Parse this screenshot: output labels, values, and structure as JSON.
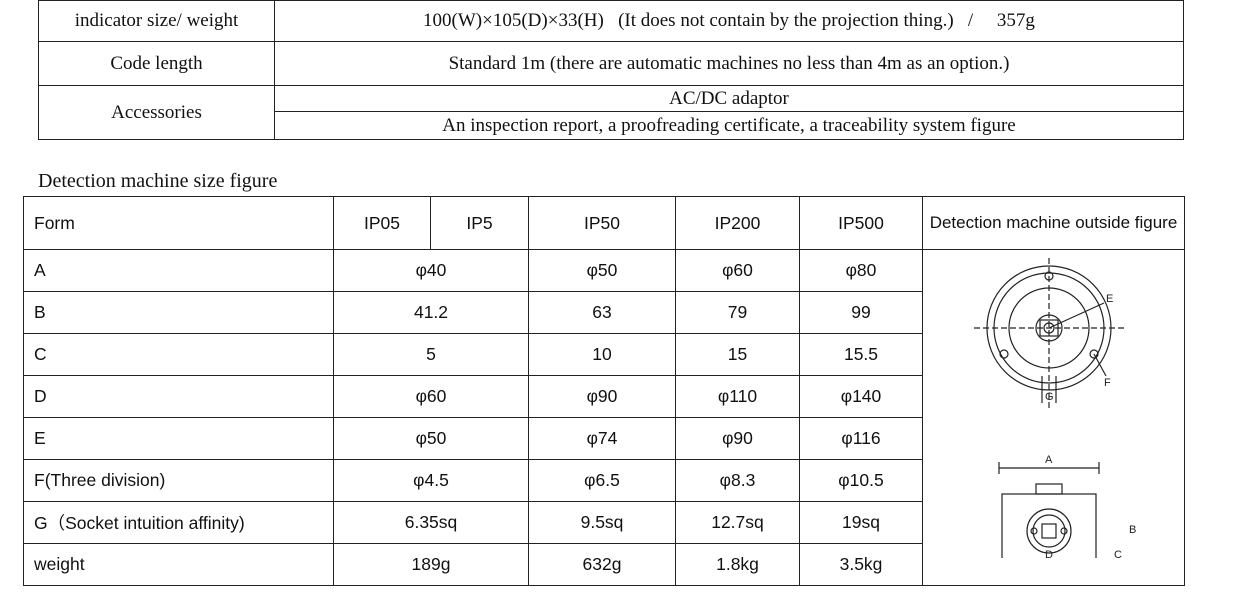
{
  "spec_table": {
    "rows": [
      {
        "label": "indicator size/ weight",
        "value": "100(W)×105(D)×33(H)   (It does not contain by the projection thing.)   /     357g"
      },
      {
        "label": "Code length",
        "value": "Standard 1m (there are automatic machines no less than 4m as an option.)"
      },
      {
        "label": "Accessories",
        "values": [
          "AC/DC adaptor",
          "An inspection report, a proofreading certificate, a traceability system figure"
        ]
      }
    ]
  },
  "size_section": {
    "heading": "Detection machine size figure",
    "headers": {
      "form": "Form",
      "models": [
        "IP05",
        "IP5",
        "IP50",
        "IP200",
        "IP500"
      ],
      "figure": "Detection machine outside figure"
    },
    "rows": [
      {
        "form": "A",
        "ip05_ip5": "φ40",
        "ip50": "φ50",
        "ip200": "φ60",
        "ip500": "φ80"
      },
      {
        "form": "B",
        "ip05_ip5": "41.2",
        "ip50": "63",
        "ip200": "79",
        "ip500": "99"
      },
      {
        "form": "C",
        "ip05_ip5": "5",
        "ip50": "10",
        "ip200": "15",
        "ip500": "15.5"
      },
      {
        "form": "D",
        "ip05_ip5": "φ60",
        "ip50": "φ90",
        "ip200": "φ110",
        "ip500": "φ140"
      },
      {
        "form": "E",
        "ip05_ip5": "φ50",
        "ip50": "φ74",
        "ip200": "φ90",
        "ip500": "φ116"
      },
      {
        "form": "F(Three division)",
        "ip05_ip5": "φ4.5",
        "ip50": "φ6.5",
        "ip200": "φ8.3",
        "ip500": "φ10.5"
      },
      {
        "form": "G（Socket intuition affinity)",
        "ip05_ip5": "6.35sq",
        "ip50": "9.5sq",
        "ip200": "12.7sq",
        "ip500": "19sq"
      },
      {
        "form": "weight",
        "ip05_ip5": "189g",
        "ip50": "632g",
        "ip200": "1.8kg",
        "ip500": "3.5kg"
      }
    ],
    "figure_labels": [
      "E",
      "F",
      "G",
      "A",
      "B",
      "C",
      "D"
    ]
  }
}
